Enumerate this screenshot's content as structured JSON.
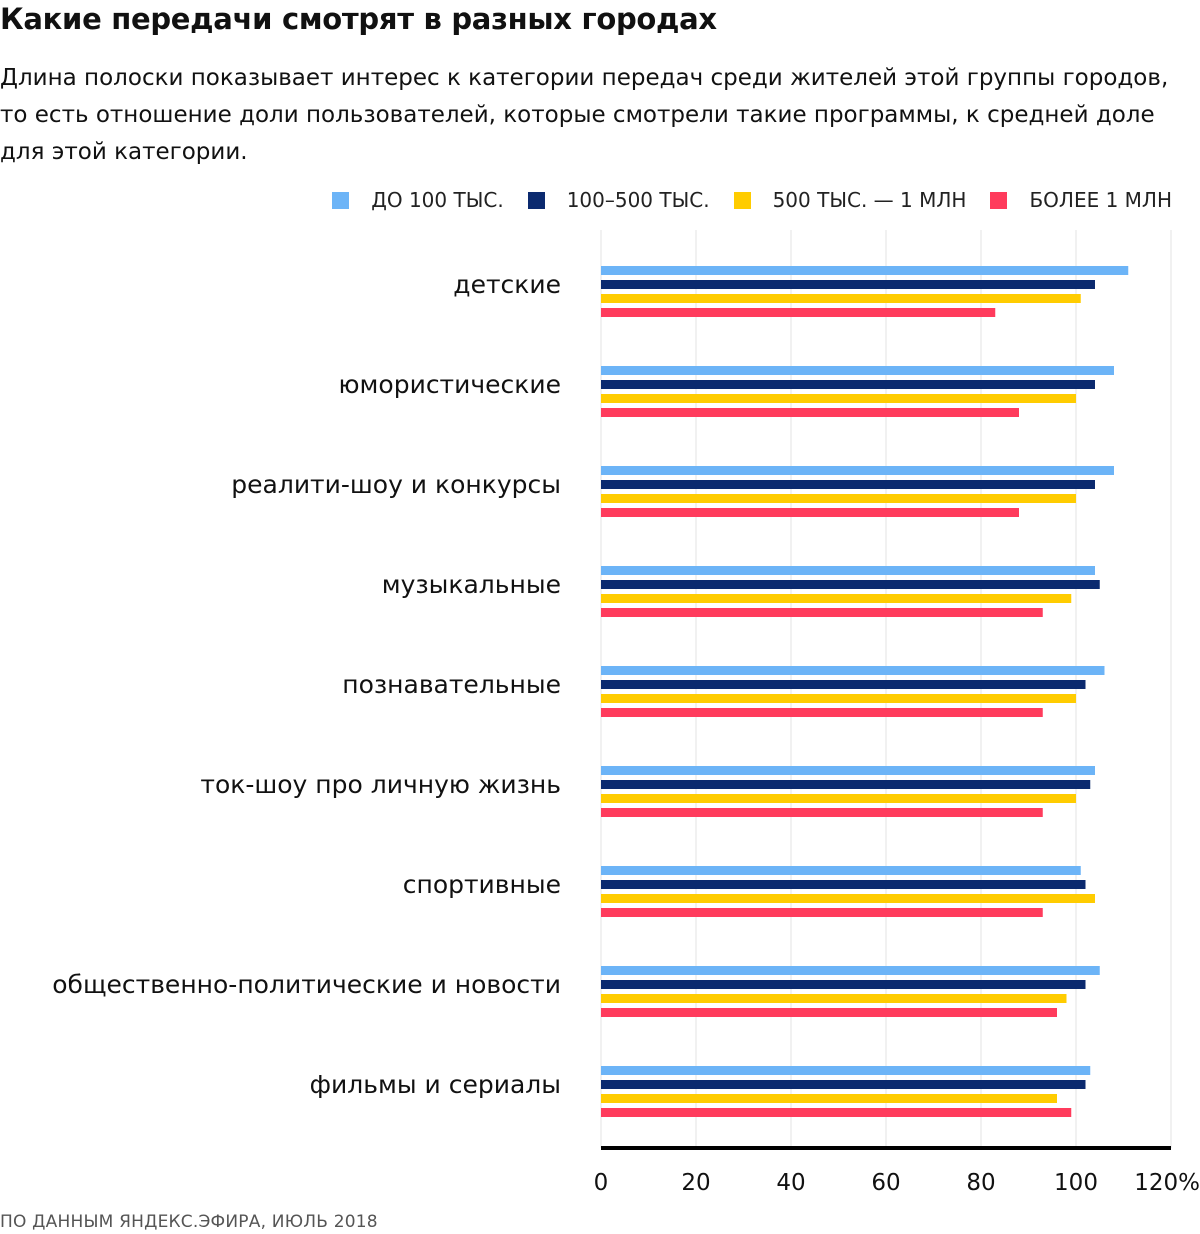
{
  "header": {
    "title": "Какие передачи смотрят в разных городах",
    "subtitle": "Длина полоски показывает интерес к категории передач среди жителей этой группы городов, то есть отношение доли пользователей, которые смотрели такие программы, к средней доле для этой категории."
  },
  "footer": {
    "source": "ПО ДАННЫМ ЯНДЕКС.ЭФИРА, ИЮЛЬ 2018"
  },
  "chart_data": {
    "type": "bar",
    "orientation": "horizontal",
    "title": "Какие передачи смотрят в разных городах",
    "xlabel": "",
    "ylabel": "",
    "xlim": [
      0,
      120
    ],
    "x_ticks": [
      0,
      20,
      40,
      60,
      80,
      100,
      120
    ],
    "x_tick_labels": [
      "0",
      "20",
      "40",
      "60",
      "80",
      "100",
      "120%"
    ],
    "grid": true,
    "legend_position": "top-right",
    "categories": [
      "детские",
      "юмористические",
      "реалити-шоу и конкурсы",
      "музыкальные",
      "познавательные",
      "ток-шоу про личную жизнь",
      "спортивные",
      "общественно-политические и новости",
      "фильмы и сериалы"
    ],
    "series": [
      {
        "name": "ДО 100 ТЫС.",
        "color": "#6cb4f7",
        "values": [
          111,
          108,
          108,
          104,
          106,
          104,
          101,
          105,
          103
        ]
      },
      {
        "name": "100–500 ТЫС.",
        "color": "#0b2a6f",
        "values": [
          104,
          104,
          104,
          105,
          102,
          103,
          102,
          102,
          102
        ]
      },
      {
        "name": "500 ТЫС. — 1 МЛН",
        "color": "#ffcc00",
        "values": [
          101,
          100,
          100,
          99,
          100,
          100,
          104,
          98,
          96
        ]
      },
      {
        "name": "БОЛЕЕ 1 МЛН",
        "color": "#ff3b5c",
        "values": [
          83,
          88,
          88,
          93,
          93,
          93,
          93,
          96,
          99
        ]
      }
    ]
  }
}
